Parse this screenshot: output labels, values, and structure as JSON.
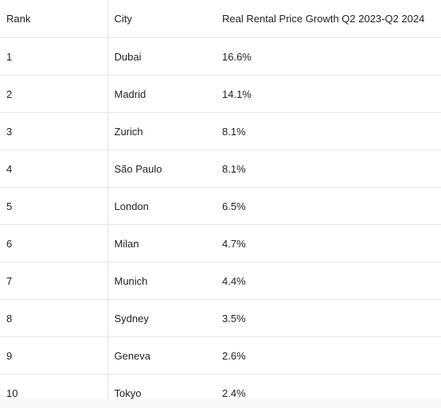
{
  "table": {
    "headers": [
      "Rank",
      "City",
      "Real Rental Price Growth Q2 2023-Q2 2024"
    ],
    "rows": [
      [
        "1",
        "Dubai",
        "16.6%"
      ],
      [
        "2",
        "Madrid",
        "14.1%"
      ],
      [
        "3",
        "Zurich",
        "8.1%"
      ],
      [
        "4",
        "São Paulo",
        "8.1%"
      ],
      [
        "5",
        "London",
        "6.5%"
      ],
      [
        "6",
        "Milan",
        "4.7%"
      ],
      [
        "7",
        "Munich",
        "4.4%"
      ],
      [
        "8",
        "Sydney",
        "3.5%"
      ],
      [
        "9",
        "Geneva",
        "2.6%"
      ],
      [
        "10",
        "Tokyo",
        "2.4%"
      ]
    ]
  }
}
